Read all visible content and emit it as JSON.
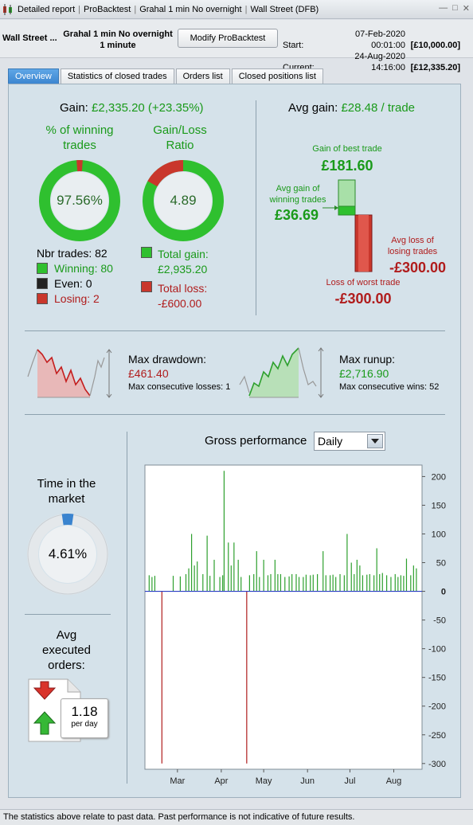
{
  "titlebar": {
    "crumbs": [
      "Detailed report",
      "ProBacktest",
      "Grahal 1 min No overnight",
      "Wall Street (DFB)"
    ]
  },
  "header": {
    "instrument": "Wall Street ...",
    "system_line1": "Grahal 1 min No overnight",
    "system_line2": "1 minute",
    "modify_button": "Modify ProBacktest",
    "start_label": "Start:",
    "start_date": "07-Feb-2020 00:01:00",
    "start_capital": "[£10,000.00]",
    "current_label": "Current:",
    "current_date": "24-Aug-2020 14:16:00",
    "current_capital": "[£12,335.20]"
  },
  "tabs": [
    {
      "label": "Overview",
      "active": true
    },
    {
      "label": "Statistics of closed trades",
      "active": false
    },
    {
      "label": "Orders list",
      "active": false
    },
    {
      "label": "Closed positions list",
      "active": false
    }
  ],
  "overview": {
    "gain_label": "Gain:",
    "gain_value": "£2,335.20 (+23.35%)",
    "winning_title_1": "% of winning",
    "winning_title_2": "trades",
    "winning_pct": "97.56%",
    "winning_fraction": 0.9756,
    "ratio_title_1": "Gain/Loss",
    "ratio_title_2": "Ratio",
    "ratio_value": "4.89",
    "ratio_red_fraction": 0.17,
    "nbr_trades": "Nbr trades: 82",
    "winning": "Winning: 80",
    "even": "Even: 0",
    "losing": "Losing: 2",
    "total_gain_label": "Total gain:",
    "total_gain_value": "£2,935.20",
    "total_loss_label": "Total loss:",
    "total_loss_value": "-£600.00",
    "avg_gain_label": "Avg gain:",
    "avg_gain_value": "£28.48 / trade",
    "best_trade_label": "Gain of best trade",
    "best_trade_value": "£181.60",
    "avg_win_label_1": "Avg gain of",
    "avg_win_label_2": "winning trades",
    "avg_win_value": "£36.69",
    "avg_loss_label_1": "Avg loss of",
    "avg_loss_label_2": "losing trades",
    "avg_loss_value": "-£300.00",
    "worst_trade_label": "Loss of worst trade",
    "worst_trade_value": "-£300.00",
    "max_drawdown_label": "Max drawdown:",
    "max_drawdown_value": "£461.40",
    "max_consec_losses": "Max consecutive losses: 1",
    "max_runup_label": "Max runup:",
    "max_runup_value": "£2,716.90",
    "max_consec_wins": "Max consecutive wins: 52",
    "time_market_1": "Time in the",
    "time_market_2": "market",
    "time_market_value": "4.61%",
    "time_market_fraction": 0.0461,
    "avg_orders_1": "Avg",
    "avg_orders_2": "executed",
    "avg_orders_3": "orders:",
    "avg_orders_value": "1.18",
    "avg_orders_unit": "per day",
    "gross_perf_label": "Gross performance",
    "gross_perf_select": "Daily"
  },
  "colors": {
    "gain": "#1a9a1a",
    "loss": "#b01c1c",
    "accent": "#3a84cf"
  },
  "chart_data": {
    "type": "bar",
    "ylim": [
      -310,
      220
    ],
    "yticks": [
      200,
      150,
      100,
      50,
      0,
      -50,
      -100,
      -150,
      -200,
      -250,
      -300
    ],
    "xlim": [
      0,
      196
    ],
    "xticks": [
      {
        "label": "Mar",
        "x": 23
      },
      {
        "label": "Apr",
        "x": 54
      },
      {
        "label": "May",
        "x": 84
      },
      {
        "label": "Jun",
        "x": 115
      },
      {
        "label": "Jul",
        "x": 145
      },
      {
        "label": "Aug",
        "x": 176
      }
    ],
    "bars": [
      {
        "x": 3,
        "v": 28
      },
      {
        "x": 5,
        "v": 25
      },
      {
        "x": 7,
        "v": 27
      },
      {
        "x": 12,
        "v": -300
      },
      {
        "x": 20,
        "v": 27
      },
      {
        "x": 25,
        "v": 26
      },
      {
        "x": 29,
        "v": 30
      },
      {
        "x": 31,
        "v": 40
      },
      {
        "x": 33,
        "v": 100
      },
      {
        "x": 35,
        "v": 45
      },
      {
        "x": 37,
        "v": 52
      },
      {
        "x": 41,
        "v": 30
      },
      {
        "x": 44,
        "v": 97
      },
      {
        "x": 46,
        "v": 27
      },
      {
        "x": 49,
        "v": 55
      },
      {
        "x": 53,
        "v": 25
      },
      {
        "x": 55,
        "v": 28
      },
      {
        "x": 56,
        "v": 210
      },
      {
        "x": 59,
        "v": 85
      },
      {
        "x": 61,
        "v": 45
      },
      {
        "x": 63,
        "v": 85
      },
      {
        "x": 66,
        "v": 55
      },
      {
        "x": 68,
        "v": 25
      },
      {
        "x": 72,
        "v": -300
      },
      {
        "x": 74,
        "v": 28
      },
      {
        "x": 77,
        "v": 30
      },
      {
        "x": 79,
        "v": 70
      },
      {
        "x": 81,
        "v": 25
      },
      {
        "x": 84,
        "v": 55
      },
      {
        "x": 87,
        "v": 28
      },
      {
        "x": 89,
        "v": 30
      },
      {
        "x": 92,
        "v": 55
      },
      {
        "x": 94,
        "v": 30
      },
      {
        "x": 96,
        "v": 30
      },
      {
        "x": 99,
        "v": 25
      },
      {
        "x": 102,
        "v": 26
      },
      {
        "x": 104,
        "v": 30
      },
      {
        "x": 107,
        "v": 30
      },
      {
        "x": 109,
        "v": 25
      },
      {
        "x": 112,
        "v": 25
      },
      {
        "x": 114,
        "v": 29
      },
      {
        "x": 117,
        "v": 28
      },
      {
        "x": 119,
        "v": 29
      },
      {
        "x": 122,
        "v": 30
      },
      {
        "x": 126,
        "v": 70
      },
      {
        "x": 128,
        "v": 28
      },
      {
        "x": 131,
        "v": 28
      },
      {
        "x": 133,
        "v": 29
      },
      {
        "x": 135,
        "v": 25
      },
      {
        "x": 138,
        "v": 30
      },
      {
        "x": 141,
        "v": 28
      },
      {
        "x": 143,
        "v": 100
      },
      {
        "x": 146,
        "v": 50
      },
      {
        "x": 148,
        "v": 30
      },
      {
        "x": 150,
        "v": 55
      },
      {
        "x": 152,
        "v": 45
      },
      {
        "x": 154,
        "v": 28
      },
      {
        "x": 157,
        "v": 29
      },
      {
        "x": 159,
        "v": 30
      },
      {
        "x": 162,
        "v": 28
      },
      {
        "x": 164,
        "v": 75
      },
      {
        "x": 166,
        "v": 30
      },
      {
        "x": 168,
        "v": 32
      },
      {
        "x": 171,
        "v": 28
      },
      {
        "x": 174,
        "v": 25
      },
      {
        "x": 177,
        "v": 30
      },
      {
        "x": 179,
        "v": 25
      },
      {
        "x": 181,
        "v": 28
      },
      {
        "x": 183,
        "v": 27
      },
      {
        "x": 185,
        "v": 57
      },
      {
        "x": 188,
        "v": 28
      },
      {
        "x": 190,
        "v": 45
      },
      {
        "x": 192,
        "v": 40
      }
    ]
  },
  "footer": {
    "disclaimer": "The statistics above relate to past data. Past performance is not indicative of future results."
  }
}
